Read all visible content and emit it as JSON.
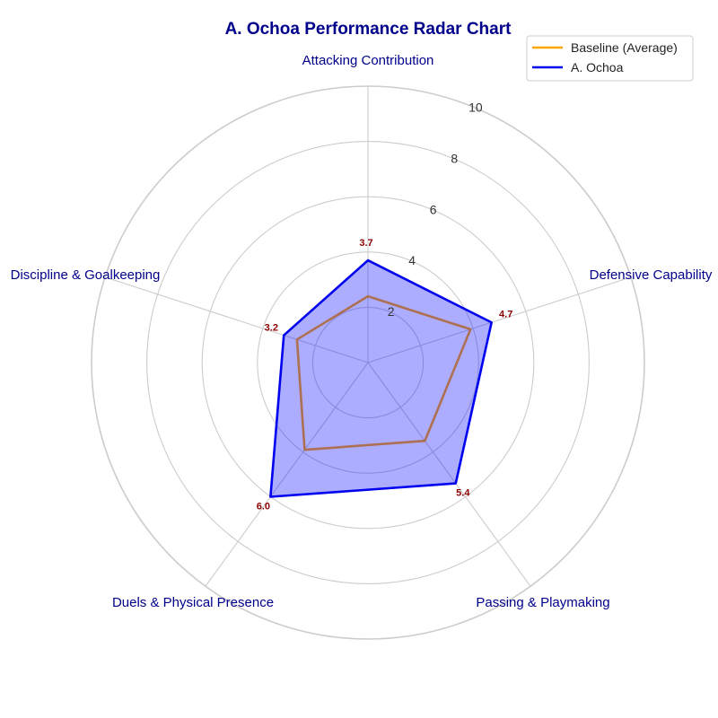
{
  "chart_data": {
    "type": "radar",
    "title": "A. Ochoa Performance Radar Chart",
    "categories": [
      "Attacking Contribution",
      "Defensive Capability",
      "Passing & Playmaking",
      "Duels & Physical Presence",
      "Discipline & Goalkeeping"
    ],
    "rlim": [
      0,
      10
    ],
    "rticks": [
      2,
      4,
      6,
      8,
      10
    ],
    "grid": true,
    "legend_position": "top-right",
    "series": [
      {
        "name": "Baseline (Average)",
        "values": [
          2.4,
          3.9,
          3.5,
          3.9,
          2.7
        ],
        "color": "#ffa500",
        "fill": "none"
      },
      {
        "name": "A. Ochoa",
        "values": [
          3.7,
          4.7,
          5.4,
          6.0,
          3.2
        ],
        "color": "#0000ee",
        "fill": "#0000ff",
        "data_labels": [
          "3.7",
          "4.7",
          "5.4",
          "6.0",
          "3.2"
        ]
      }
    ],
    "data_label_color": "#8b0000"
  }
}
